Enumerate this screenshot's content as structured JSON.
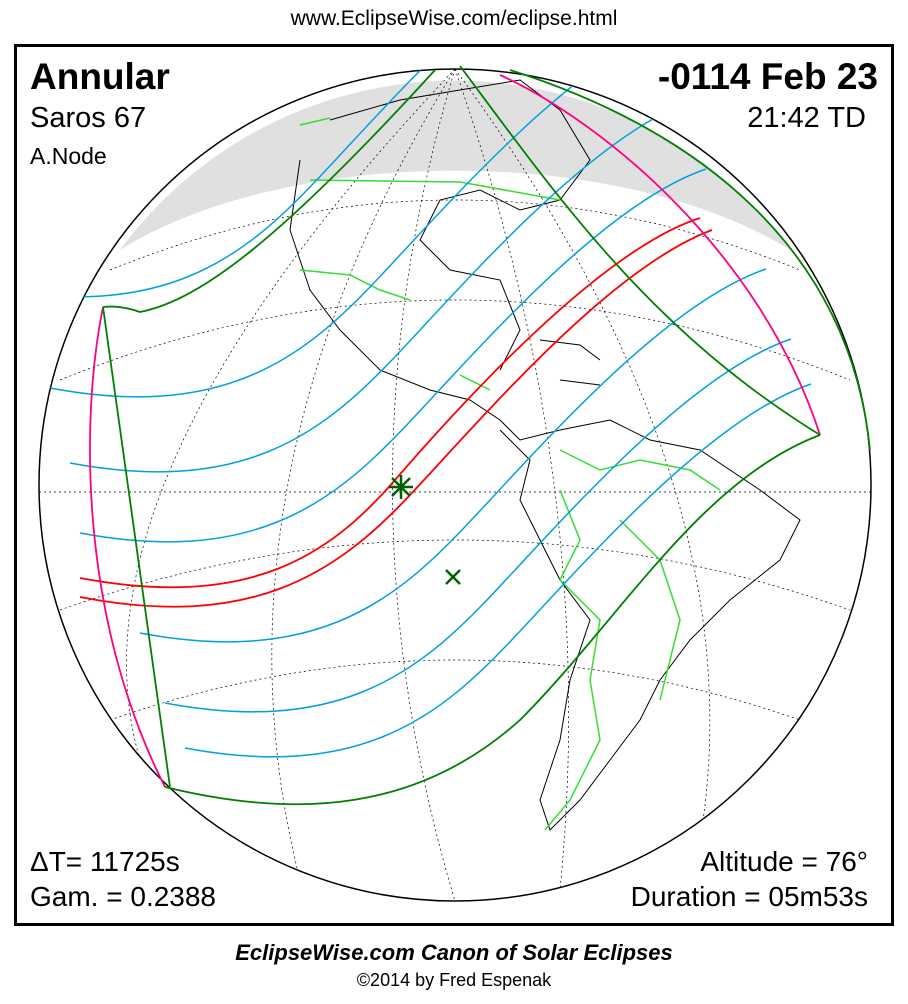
{
  "header": {
    "url": "www.EclipseWise.com/eclipse.html"
  },
  "eclipse": {
    "type": "Annular",
    "date": "-0114 Feb 23",
    "saros": "Saros  67",
    "time": "21:42 TD",
    "node": "A.Node",
    "delta_t": "ΔT=  11725s",
    "gamma": "Gam. = 0.2388",
    "altitude": "Altitude = 76°",
    "duration": "Duration = 05m53s"
  },
  "footer": {
    "canon": "EclipseWise.com Canon of Solar Eclipses",
    "copyright": "©2014 by Fred Espenak"
  },
  "colors": {
    "central_path": "#ff0000",
    "penumbral_isolines": "#00a0e0",
    "outer_limits": "#008000",
    "rise_set_curves": "#ff0080",
    "borders": "#33dd33",
    "coastlines": "#000000"
  },
  "map_markers": [
    "greatest-eclipse-star",
    "sub-solar-x"
  ]
}
